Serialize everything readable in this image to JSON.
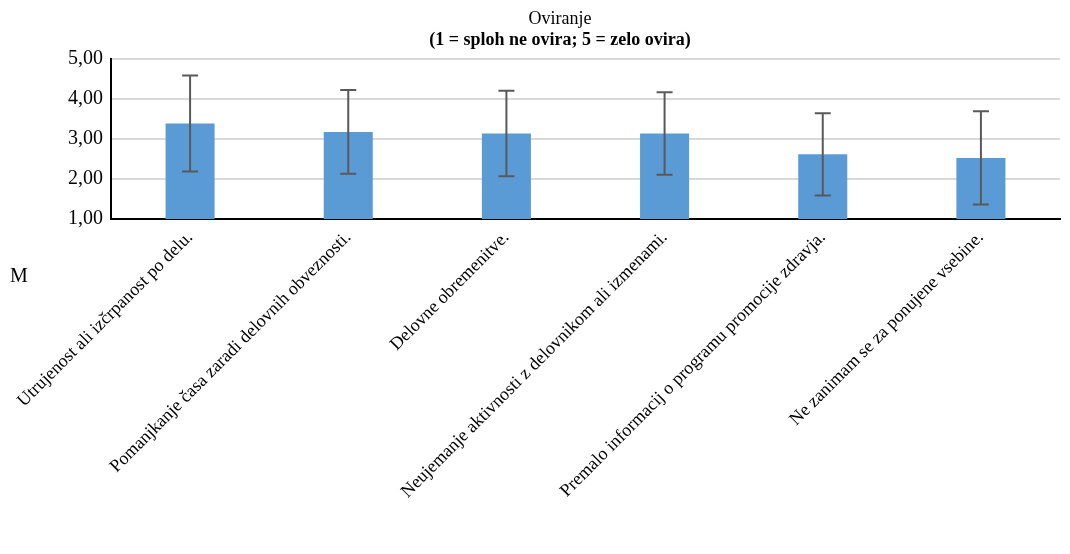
{
  "chart_data": {
    "type": "bar",
    "title": "Oviranje",
    "subtitle": "(1 = sploh ne ovira; 5 = zelo ovira)",
    "ylabel": "M",
    "categories": [
      "Utrujenost ali izčrpanost po delu.",
      "Pomanjkanje časa zaradi delovnih obveznosti.",
      "Delovne obremenitve.",
      "Neujemanje aktivnosti z delovnikom ali izmenami.",
      "Premalo informacij o programu promocije zdravja.",
      "Ne zanimam se za ponujene vsebine."
    ],
    "values": [
      3.39,
      3.18,
      3.14,
      3.14,
      2.62,
      2.53
    ],
    "errors": [
      1.2,
      1.05,
      1.07,
      1.03,
      1.03,
      1.17
    ],
    "color": "#5b9bd5",
    "ylim": [
      1,
      5
    ],
    "yticks": [
      {
        "value": 1,
        "label": "1,00"
      },
      {
        "value": 2,
        "label": "2,00"
      },
      {
        "value": 3,
        "label": "3,00"
      },
      {
        "value": 4,
        "label": "4,00"
      },
      {
        "value": 5,
        "label": "5,00"
      }
    ],
    "grid": "y",
    "legend": false
  }
}
